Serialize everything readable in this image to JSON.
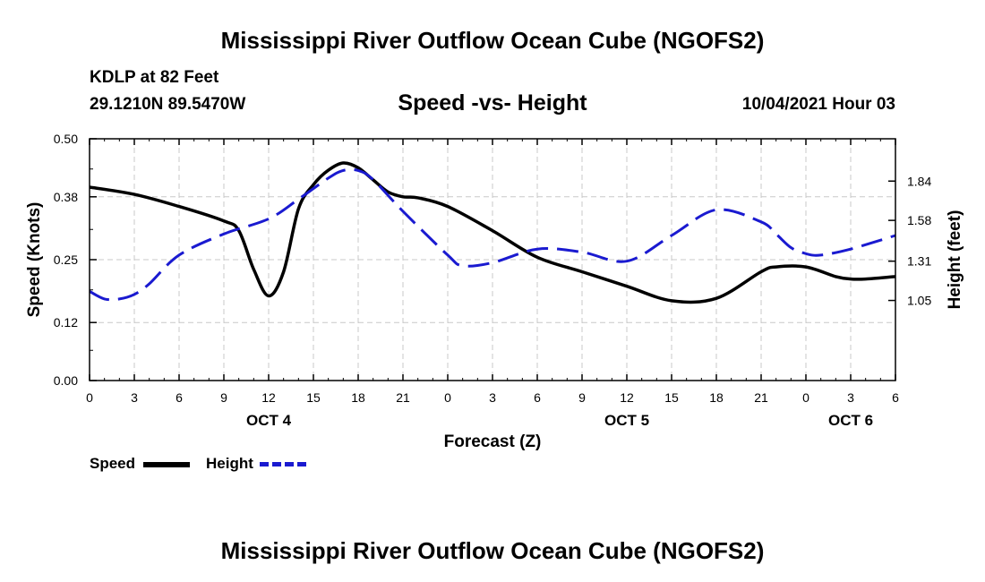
{
  "header": {
    "title": "Mississippi River Outflow Ocean Cube (NGOFS2)",
    "station": "KDLP at 82 Feet",
    "coordinates": "29.1210N  89.5470W",
    "subtitle": "Speed -vs- Height",
    "datetime": "10/04/2021 Hour 03"
  },
  "footer": {
    "title": "Mississippi River Outflow Ocean Cube (NGOFS2)"
  },
  "legend": {
    "speed_label": "Speed",
    "height_label": "Height"
  },
  "colors": {
    "speed": "#000000",
    "height": "#1a1ad0",
    "grid": "#c8c8c8"
  },
  "chart_data": {
    "type": "line",
    "title": "Speed -vs- Height",
    "xlabel": "Forecast (Z)",
    "ylabel": "Speed (Knots)",
    "y2label": "Height (feet)",
    "xlim": [
      0,
      54
    ],
    "ylim": [
      0,
      0.5
    ],
    "y2lim": [
      0.52,
      2.12
    ],
    "x_ticks": [
      0,
      3,
      6,
      9,
      12,
      15,
      18,
      21,
      24,
      27,
      30,
      33,
      36,
      39,
      42,
      45,
      48,
      51,
      54
    ],
    "x_tick_labels": [
      "0",
      "3",
      "6",
      "9",
      "12",
      "15",
      "18",
      "21",
      "0",
      "3",
      "6",
      "9",
      "12",
      "15",
      "18",
      "21",
      "0",
      "3",
      "6"
    ],
    "day_labels": [
      {
        "x": 12,
        "label": "OCT 4"
      },
      {
        "x": 36,
        "label": "OCT 5"
      },
      {
        "x": 51,
        "label": "OCT 6"
      }
    ],
    "y_ticks": [
      0.0,
      0.12,
      0.25,
      0.38,
      0.5
    ],
    "y_tick_labels": [
      "0.00",
      "0.12",
      "0.25",
      "0.38",
      "0.50"
    ],
    "y2_ticks": [
      1.05,
      1.31,
      1.58,
      1.84
    ],
    "y2_tick_labels": [
      "1.05",
      "1.31",
      "1.58",
      "1.84"
    ],
    "grid": true,
    "legend_position": "bottom-left",
    "series": [
      {
        "name": "Speed",
        "axis": "left",
        "style": "solid",
        "x": [
          0,
          3,
          6,
          9,
          10,
          11,
          12,
          13,
          14,
          15,
          16,
          17,
          18,
          19,
          20,
          21,
          22,
          24,
          27,
          30,
          33,
          36,
          39,
          42,
          45,
          46,
          48,
          50,
          51,
          52,
          54
        ],
        "values": [
          0.4,
          0.385,
          0.36,
          0.33,
          0.31,
          0.23,
          0.175,
          0.225,
          0.355,
          0.405,
          0.435,
          0.45,
          0.44,
          0.415,
          0.39,
          0.38,
          0.378,
          0.36,
          0.31,
          0.255,
          0.225,
          0.195,
          0.165,
          0.17,
          0.225,
          0.235,
          0.235,
          0.215,
          0.21,
          0.21,
          0.215
        ]
      },
      {
        "name": "Height",
        "axis": "right",
        "style": "dashed",
        "x": [
          0,
          1,
          2,
          3,
          4,
          6,
          9,
          12,
          14,
          16,
          17,
          18,
          19,
          21,
          24,
          25,
          27,
          30,
          33,
          36,
          39,
          42,
          45,
          46,
          47,
          48,
          49,
          51,
          54
        ],
        "values": [
          1.11,
          1.06,
          1.06,
          1.09,
          1.16,
          1.35,
          1.49,
          1.59,
          1.72,
          1.86,
          1.91,
          1.91,
          1.85,
          1.64,
          1.35,
          1.28,
          1.3,
          1.39,
          1.37,
          1.31,
          1.48,
          1.65,
          1.57,
          1.49,
          1.4,
          1.36,
          1.35,
          1.39,
          1.48
        ]
      }
    ]
  }
}
